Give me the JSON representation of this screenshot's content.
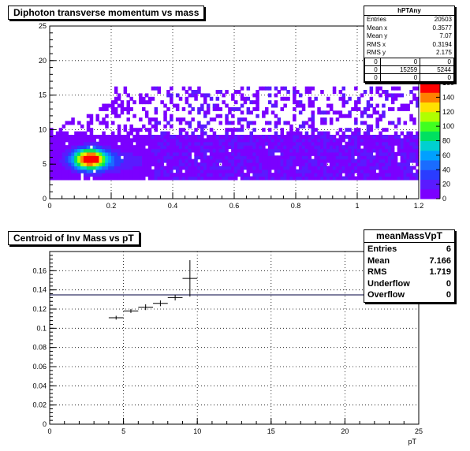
{
  "chart_data": [
    {
      "type": "heatmap",
      "title": "Diphoton transverse momentum vs mass",
      "xlim": [
        0,
        1.2
      ],
      "ylim": [
        0,
        25
      ],
      "xticks": [
        "0",
        "0.2",
        "0.4",
        "0.6",
        "0.8",
        "1",
        "1.2"
      ],
      "yticks": [
        "0",
        "5",
        "10",
        "15",
        "20",
        "25"
      ],
      "zticks": [
        "0",
        "20",
        "40",
        "60",
        "80",
        "100",
        "120",
        "140",
        "160"
      ],
      "zlim": [
        0,
        160
      ],
      "grid": true,
      "peak": {
        "x": 0.13,
        "y": 5.8,
        "value": 160
      },
      "stats": {
        "name": "hPTAny",
        "rows": [
          {
            "label": "Entries",
            "value": "20503"
          },
          {
            "label": "Mean x",
            "value": "0.3577"
          },
          {
            "label": "Mean y",
            "value": "7.07"
          },
          {
            "label": "RMS x",
            "value": "0.3194"
          },
          {
            "label": "RMS y",
            "value": "2.175"
          }
        ],
        "overflow_table": [
          [
            "0",
            "0",
            "0"
          ],
          [
            "0",
            "15259",
            "5244"
          ],
          [
            "0",
            "0",
            "0"
          ]
        ]
      }
    },
    {
      "type": "scatter",
      "title": "Centroid of Inv Mass vs pT",
      "xlabel": "pT",
      "ylabel": "",
      "xlim": [
        0,
        25
      ],
      "ylim": [
        0,
        0.18
      ],
      "xticks": [
        "0",
        "5",
        "10",
        "15",
        "20",
        "25"
      ],
      "yticks": [
        "0",
        "0.02",
        "0.04",
        "0.06",
        "0.08",
        "0.1",
        "0.12",
        "0.14",
        "0.16"
      ],
      "grid": true,
      "points": [
        {
          "x": 4.5,
          "y": 0.111,
          "xerr": 0.5,
          "yerr": 0.002
        },
        {
          "x": 5.5,
          "y": 0.118,
          "xerr": 0.5,
          "yerr": 0.002
        },
        {
          "x": 6.5,
          "y": 0.122,
          "xerr": 0.5,
          "yerr": 0.003
        },
        {
          "x": 7.5,
          "y": 0.126,
          "xerr": 0.5,
          "yerr": 0.003
        },
        {
          "x": 8.5,
          "y": 0.132,
          "xerr": 0.5,
          "yerr": 0.003
        },
        {
          "x": 9.5,
          "y": 0.152,
          "xerr": 0.5,
          "yerr": 0.019
        }
      ],
      "stats": {
        "name": "meanMassVpT",
        "rows": [
          {
            "label": "Entries",
            "value": "6"
          },
          {
            "label": "Mean",
            "value": "7.166"
          },
          {
            "label": "RMS",
            "value": "1.719"
          },
          {
            "label": "Underflow",
            "value": "0"
          },
          {
            "label": "Overflow",
            "value": "0"
          }
        ]
      }
    }
  ],
  "colors": {
    "palette": [
      "#7b00ff",
      "#5a1aff",
      "#2a3cff",
      "#1a6cff",
      "#00a0ff",
      "#00d0d0",
      "#00e060",
      "#40ff20",
      "#b0ff00",
      "#ffe000",
      "#ff8000",
      "#ff0000"
    ],
    "frame": "#000000",
    "grid": "#000000"
  }
}
